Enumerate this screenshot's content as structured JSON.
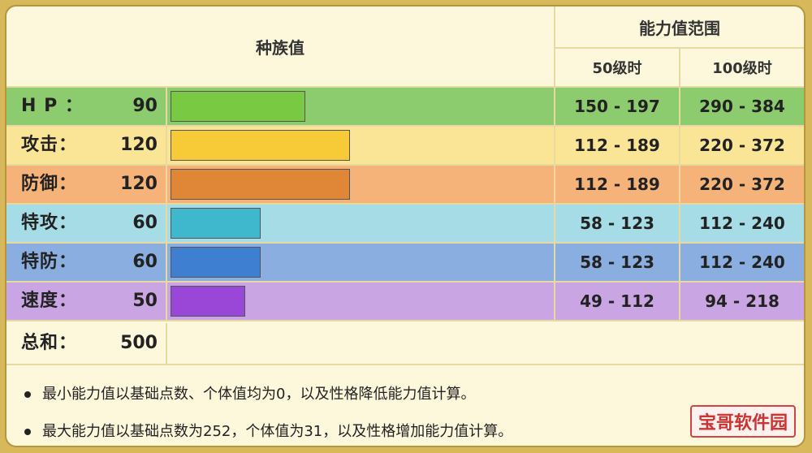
{
  "header": {
    "base_stats": "种族值",
    "range_title": "能力值范围",
    "lv50": "50级时",
    "lv100": "100级时"
  },
  "stats": [
    {
      "name": "H P ：",
      "value": "90",
      "base": 90,
      "range50": "150 - 197",
      "range100": "290 - 384",
      "row_color": "#8ccb6e",
      "bar_color": "#7ac943"
    },
    {
      "name": "攻击：",
      "value": "120",
      "base": 120,
      "range50": "112 - 189",
      "range100": "220 - 372",
      "row_color": "#f9e595",
      "bar_color": "#f7cb38"
    },
    {
      "name": "防御：",
      "value": "120",
      "base": 120,
      "range50": "112 - 189",
      "range100": "220 - 372",
      "row_color": "#f5b37a",
      "bar_color": "#df8637"
    },
    {
      "name": "特攻：",
      "value": "60",
      "base": 60,
      "range50": "58 - 123",
      "range100": "112 - 240",
      "row_color": "#a6dce6",
      "bar_color": "#3fb7cc"
    },
    {
      "name": "特防：",
      "value": "60",
      "base": 60,
      "range50": "58 - 123",
      "range100": "112 - 240",
      "row_color": "#8aaee0",
      "bar_color": "#3f7fd2"
    },
    {
      "name": "速度：",
      "value": "50",
      "base": 50,
      "range50": "49 - 112",
      "range100": "94 - 218",
      "row_color": "#c9a6e3",
      "bar_color": "#9a46d6"
    }
  ],
  "total": {
    "name": "总和：",
    "value": "500"
  },
  "notes": [
    "最小能力值以基础点数、个体值均为0，以及性格降低能力值计算。",
    "最大能力值以基础点数为252，个体值为31，以及性格增加能力值计算。"
  ],
  "watermark": "宝哥软件园"
}
